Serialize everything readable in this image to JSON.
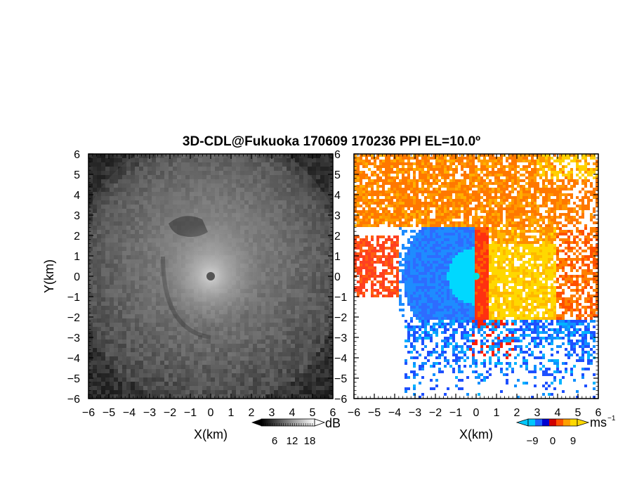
{
  "chart_data": [
    {
      "type": "heatmap",
      "title": "3D-CDL@Fukuoka 170609 170236 PPI EL=10.0º",
      "panel": "left",
      "variable": "backscatter intensity",
      "xlabel": "X(km)",
      "ylabel": "Y(km)",
      "xlim": [
        -6,
        6
      ],
      "ylim": [
        -6,
        6
      ],
      "xticks": [
        "−6",
        "−5",
        "−4",
        "−3",
        "−2",
        "−1",
        "0",
        "1",
        "2",
        "3",
        "4",
        "5",
        "6"
      ],
      "yticks": [
        "6",
        "5",
        "4",
        "3",
        "2",
        "1",
        "0",
        "−1",
        "−2",
        "−3",
        "−4",
        "−5",
        "−6"
      ],
      "colorbar": {
        "unit": "dB",
        "ticks": [
          "6",
          "12",
          "18"
        ],
        "tick_values": [
          6,
          12,
          18
        ],
        "range": [
          0,
          24
        ],
        "colormap": "grayscale"
      }
    },
    {
      "type": "heatmap",
      "panel": "right",
      "variable": "radial velocity",
      "xlabel": "X(km)",
      "xlim": [
        -6,
        6
      ],
      "ylim": [
        -6,
        6
      ],
      "xticks": [
        "−6",
        "−5",
        "−4",
        "−3",
        "−2",
        "−1",
        "0",
        "1",
        "2",
        "3",
        "4",
        "5",
        "6"
      ],
      "yticks": [
        "6",
        "5",
        "4",
        "3",
        "2",
        "1",
        "0",
        "−1",
        "−2",
        "−3",
        "−4",
        "−5",
        "−6"
      ],
      "colorbar": {
        "unit": "ms",
        "unit_exponent": "−1",
        "ticks": [
          "−9",
          "0",
          "9"
        ],
        "tick_values": [
          -9,
          0,
          9
        ],
        "range": [
          -18,
          18
        ],
        "colors": [
          "#00c8ff",
          "#1e64ff",
          "#0000d0",
          "#d00000",
          "#ff5000",
          "#ffa000",
          "#ffd800"
        ]
      }
    }
  ]
}
